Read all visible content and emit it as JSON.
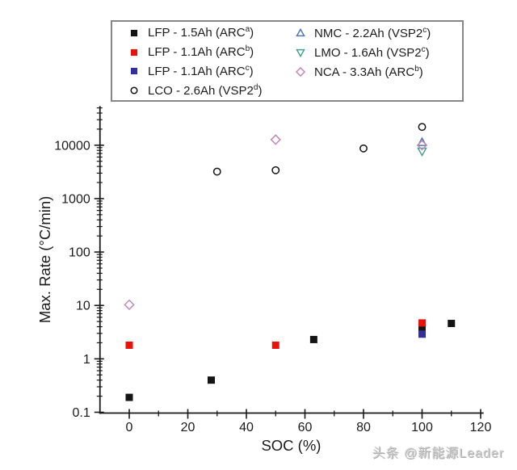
{
  "watermark": "头条 @新能源Leader",
  "chart_data": {
    "type": "scatter",
    "title": "",
    "xlabel": "SOC (%)",
    "ylabel": "Max. Rate (°C/min)",
    "grid": false,
    "legend_position": "top-center",
    "x_axis": {
      "scale": "linear",
      "min": -10,
      "max": 120.6,
      "major_ticks": [
        0,
        20,
        40,
        60,
        80,
        100,
        120
      ],
      "minor_ticks": [
        10,
        30,
        50,
        70,
        90,
        110
      ]
    },
    "y_axis": {
      "scale": "log",
      "min": 0.1,
      "max": 54000,
      "major_ticks": [
        {
          "v": 0.1,
          "label": "0.1"
        },
        {
          "v": 1,
          "label": "1"
        },
        {
          "v": 10,
          "label": "10"
        },
        {
          "v": 100,
          "label": "100"
        },
        {
          "v": 1000,
          "label": "1000"
        },
        {
          "v": 10000,
          "label": "10000"
        }
      ]
    },
    "series": [
      {
        "label_pre": "LFP - 1.5Ah (ARC",
        "label_sup": "a",
        "label_post": ")",
        "marker": "square-filled",
        "color": "#141414",
        "points": [
          [
            0,
            0.19
          ],
          [
            28,
            0.4
          ],
          [
            63,
            2.3
          ],
          [
            100,
            3.7
          ],
          [
            110,
            4.6
          ]
        ]
      },
      {
        "label_pre": "LFP - 1.1Ah (ARC",
        "label_sup": "b",
        "label_post": ")",
        "marker": "square-filled",
        "color": "#e8120c",
        "points": [
          [
            0,
            1.8
          ],
          [
            50,
            1.8
          ],
          [
            100,
            4.7
          ]
        ]
      },
      {
        "label_pre": "LFP - 1.1Ah (ARC",
        "label_sup": "c",
        "label_post": ")",
        "marker": "square-filled",
        "color": "#34309a",
        "points": [
          [
            100,
            2.9
          ]
        ]
      },
      {
        "label_pre": "LCO - 2.6Ah (VSP2",
        "label_sup": "d",
        "label_post": ")",
        "marker": "circle-open",
        "color": "#141414",
        "points": [
          [
            30,
            3200
          ],
          [
            50,
            3400
          ],
          [
            80,
            8700
          ],
          [
            100,
            22000
          ]
        ]
      },
      {
        "label_pre": "NMC - 2.2Ah (VSP2",
        "label_sup": "c",
        "label_post": ")",
        "marker": "triangle-up-open",
        "color": "#4d78a8",
        "points": [
          [
            100,
            11300
          ]
        ]
      },
      {
        "label_pre": "LMO - 1.6Ah (VSP2",
        "label_sup": "c",
        "label_post": ")",
        "marker": "triangle-down-open",
        "color": "#45a191",
        "points": [
          [
            100,
            7700
          ]
        ]
      },
      {
        "label_pre": "NCA - 3.3Ah (ARC",
        "label_sup": "b",
        "label_post": ")",
        "marker": "diamond-open",
        "color": "#c289b8",
        "points": [
          [
            0,
            10.3
          ],
          [
            50,
            12700
          ],
          [
            100,
            10000
          ]
        ]
      }
    ],
    "legend_columns": [
      [
        0,
        1,
        2,
        3
      ],
      [
        4,
        5,
        6
      ]
    ]
  }
}
